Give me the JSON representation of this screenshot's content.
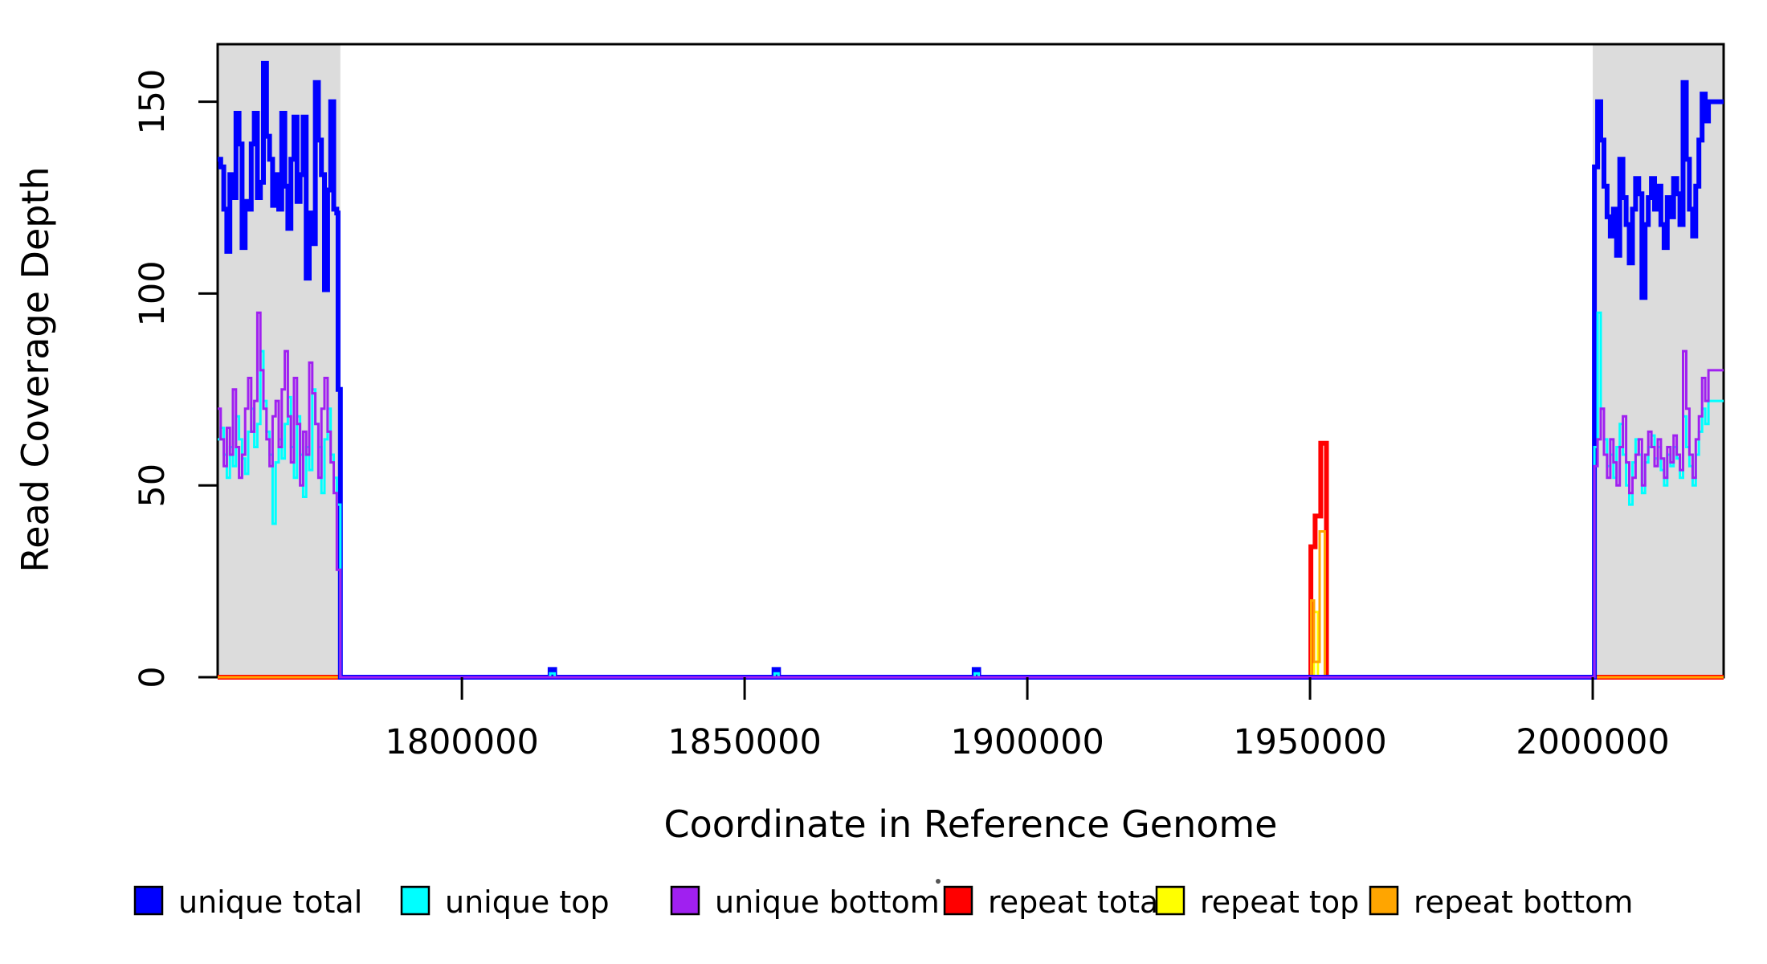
{
  "figure": {
    "background": "#FFFFFF",
    "axis_color": "#000000"
  },
  "chart_data": {
    "type": "line",
    "step": true,
    "title": "",
    "xlabel": "Coordinate in Reference Genome",
    "ylabel": "Read Coverage Depth",
    "xlim": [
      1756800,
      2023150
    ],
    "ylim": [
      0,
      165
    ],
    "grid": "off",
    "x_ticks": [
      {
        "value": 1800000,
        "label": "1800000"
      },
      {
        "value": 1850000,
        "label": "1850000"
      },
      {
        "value": 1900000,
        "label": "1900000"
      },
      {
        "value": 1950000,
        "label": "1950000"
      },
      {
        "value": 2000000,
        "label": "2000000"
      }
    ],
    "y_ticks": [
      {
        "value": 0,
        "label": "0"
      },
      {
        "value": 50,
        "label": "50"
      },
      {
        "value": 100,
        "label": "100"
      },
      {
        "value": 150,
        "label": "150"
      }
    ],
    "shaded_regions": {
      "color": "#DCDCDC",
      "regions": [
        {
          "x0": 1756800,
          "x1": 1778500
        },
        {
          "x0": 2000000,
          "x1": 2023150
        }
      ]
    },
    "draw_order": [
      "repeat total",
      "repeat top",
      "repeat bottom",
      "unique total",
      "unique top",
      "unique bottom"
    ],
    "legend_position": "bottom",
    "series": [
      {
        "name": "unique total",
        "color": "#0000FF",
        "line_width": 6,
        "runs": [
          {
            "x0": 1756800,
            "dx": 540,
            "values": [
              135,
              133,
              122,
              111,
              131,
              125,
              147,
              139,
              112,
              124,
              122,
              139,
              147,
              125,
              129,
              160,
              141,
              135,
              123,
              131,
              122,
              147,
              128,
              117,
              135,
              146,
              124,
              131,
              146,
              104,
              121,
              113,
              155,
              140,
              131,
              101,
              127,
              150,
              122,
              121
            ]
          },
          {
            "x0": 1778100,
            "values": [
              75
            ]
          },
          {
            "x0": 1778500,
            "values": [
              0
            ]
          },
          {
            "x0": 1815600,
            "values": [
              2
            ]
          },
          {
            "x0": 1816400,
            "values": [
              0
            ]
          },
          {
            "x0": 1855200,
            "values": [
              2
            ]
          },
          {
            "x0": 1856000,
            "values": [
              0
            ]
          },
          {
            "x0": 1890600,
            "values": [
              2
            ]
          },
          {
            "x0": 1891400,
            "values": [
              0
            ]
          },
          {
            "x0": 2000300,
            "dx": 560,
            "values": [
              133,
              150,
              140,
              128,
              120,
              115,
              122,
              110,
              135,
              125,
              118,
              108,
              122,
              130,
              126,
              99,
              118,
              125,
              130,
              122,
              128,
              118,
              112,
              125,
              120,
              130,
              126,
              118,
              155,
              135,
              122,
              115,
              128,
              140,
              152,
              145,
              150
            ]
          }
        ]
      },
      {
        "name": "unique top",
        "color": "#00FFFF",
        "line_width": 3,
        "runs": [
          {
            "x0": 1756800,
            "dx": 540,
            "values": [
              62,
              65,
              58,
              52,
              60,
              55,
              68,
              62,
              57,
              53,
              64,
              70,
              60,
              66,
              85,
              72,
              64,
              58,
              40,
              56,
              62,
              57,
              66,
              73,
              60,
              52,
              68,
              58,
              47,
              60,
              54,
              75,
              66,
              60,
              48,
              62,
              70,
              58,
              52,
              45
            ]
          },
          {
            "x0": 1778500,
            "values": [
              0
            ]
          },
          {
            "x0": 1815600,
            "values": [
              1
            ]
          },
          {
            "x0": 1816400,
            "values": [
              0
            ]
          },
          {
            "x0": 1855300,
            "values": [
              1
            ]
          },
          {
            "x0": 1856000,
            "values": [
              0
            ]
          },
          {
            "x0": 1890700,
            "values": [
              1
            ]
          },
          {
            "x0": 1891400,
            "values": [
              0
            ]
          },
          {
            "x0": 2000300,
            "dx": 560,
            "values": [
              60,
              95,
              70,
              62,
              55,
              58,
              52,
              60,
              66,
              58,
              50,
              45,
              56,
              62,
              58,
              48,
              56,
              60,
              63,
              57,
              60,
              54,
              50,
              58,
              55,
              60,
              57,
              52,
              68,
              60,
              55,
              50,
              58,
              64,
              70,
              66,
              72
            ]
          }
        ]
      },
      {
        "name": "unique bottom",
        "color": "#A020F0",
        "line_width": 3,
        "runs": [
          {
            "x0": 1756800,
            "dx": 540,
            "values": [
              70,
              62,
              55,
              65,
              58,
              75,
              60,
              52,
              58,
              70,
              78,
              64,
              72,
              95,
              80,
              70,
              62,
              55,
              68,
              72,
              60,
              75,
              85,
              68,
              56,
              78,
              66,
              50,
              64,
              58,
              82,
              74,
              66,
              52,
              70,
              78,
              64,
              56,
              48,
              28
            ]
          },
          {
            "x0": 1778500,
            "values": [
              0
            ]
          },
          {
            "x0": 2000300,
            "dx": 560,
            "values": [
              55,
              62,
              70,
              58,
              52,
              62,
              56,
              50,
              60,
              68,
              56,
              48,
              52,
              58,
              62,
              50,
              58,
              64,
              60,
              55,
              62,
              57,
              52,
              60,
              56,
              63,
              58,
              54,
              85,
              70,
              58,
              52,
              62,
              68,
              78,
              72,
              80
            ]
          }
        ]
      },
      {
        "name": "repeat total",
        "color": "#FF0000",
        "line_width": 6,
        "runs": [
          {
            "x0": 1756800,
            "values": [
              0
            ]
          },
          {
            "x0": 1950150,
            "values": [
              34
            ]
          },
          {
            "x0": 1950900,
            "values": [
              42
            ]
          },
          {
            "x0": 1951900,
            "values": [
              61
            ]
          },
          {
            "x0": 1952900,
            "values": [
              0
            ]
          }
        ]
      },
      {
        "name": "repeat top",
        "color": "#FFFF00",
        "line_width": 3,
        "runs": [
          {
            "x0": 1756800,
            "values": [
              0
            ]
          },
          {
            "x0": 1950700,
            "values": [
              17
            ]
          },
          {
            "x0": 1951400,
            "values": [
              0
            ]
          }
        ]
      },
      {
        "name": "repeat bottom",
        "color": "#FFA500",
        "line_width": 3,
        "runs": [
          {
            "x0": 1756800,
            "values": [
              0
            ]
          },
          {
            "x0": 1950200,
            "values": [
              20
            ]
          },
          {
            "x0": 1950700,
            "values": [
              4
            ]
          },
          {
            "x0": 1951700,
            "values": [
              38
            ]
          },
          {
            "x0": 1952600,
            "values": [
              0
            ]
          }
        ]
      }
    ]
  }
}
